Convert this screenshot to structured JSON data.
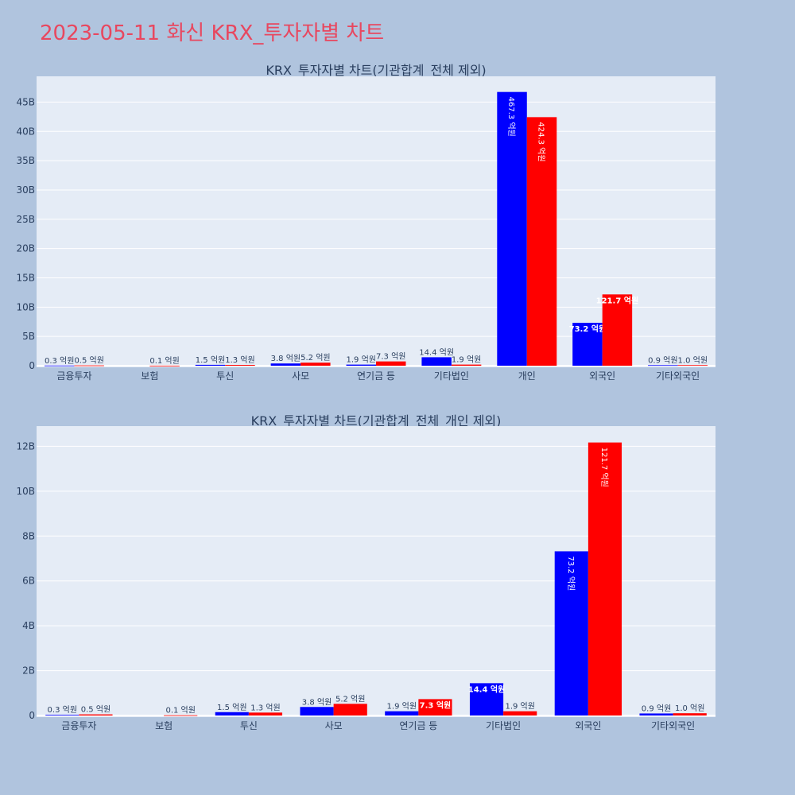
{
  "page": {
    "title": "2023-05-11 화신 KRX_투자자별 차트",
    "title_color": "#e8475f",
    "background": "#b0c4de",
    "plot_background": "#e5ecf6"
  },
  "chart_data": [
    {
      "type": "bar",
      "title": "KRX_투자자별 차트(기관합계_전체 제외)",
      "categories": [
        "금융투자",
        "보험",
        "투신",
        "사모",
        "연기금 등",
        "기타법인",
        "개인",
        "외국인",
        "기타외국인"
      ],
      "series": [
        {
          "color": "#0000ff",
          "values": [
            30000000,
            0,
            150000000,
            380000000,
            190000000,
            1440000000,
            46730000000,
            7320000000,
            90000000
          ],
          "labels": [
            "0.3 억원",
            "",
            "1.5 억원",
            "3.8 억원",
            "1.9 억원",
            "14.4 억원",
            "467.3 억원",
            "73.2 억원",
            "0.9 억원"
          ]
        },
        {
          "color": "#ff0000",
          "values": [
            50000000,
            10000000,
            130000000,
            520000000,
            730000000,
            190000000,
            42430000000,
            12170000000,
            100000000
          ],
          "labels": [
            "0.5 억원",
            "0.1 억원",
            "1.3 억원",
            "5.2 억원",
            "7.3 억원",
            "1.9 억원",
            "424.3 억원",
            "121.7 억원",
            "1.0 억원"
          ]
        }
      ],
      "yticks": [
        0,
        5000000000,
        10000000000,
        15000000000,
        20000000000,
        25000000000,
        30000000000,
        35000000000,
        40000000000,
        45000000000
      ],
      "ytick_labels": [
        "0",
        "5B",
        "10B",
        "15B",
        "20B",
        "25B",
        "30B",
        "35B",
        "40B",
        "45B"
      ],
      "ylim": [
        0,
        49400000000
      ],
      "grid": true
    },
    {
      "type": "bar",
      "title": "KRX_투자자별 차트(기관합계_전체_개인 제외)",
      "categories": [
        "금융투자",
        "보험",
        "투신",
        "사모",
        "연기금 등",
        "기타법인",
        "외국인",
        "기타외국인"
      ],
      "series": [
        {
          "color": "#0000ff",
          "values": [
            30000000,
            0,
            150000000,
            380000000,
            190000000,
            1440000000,
            7320000000,
            90000000
          ],
          "labels": [
            "0.3 억원",
            "",
            "1.5 억원",
            "3.8 억원",
            "1.9 억원",
            "14.4 억원",
            "73.2 억원",
            "0.9 억원"
          ]
        },
        {
          "color": "#ff0000",
          "values": [
            50000000,
            10000000,
            130000000,
            520000000,
            730000000,
            190000000,
            12170000000,
            100000000
          ],
          "labels": [
            "0.5 억원",
            "0.1 억원",
            "1.3 억원",
            "5.2 억원",
            "7.3 억원",
            "1.9 억원",
            "121.7 억원",
            "1.0 억원"
          ]
        }
      ],
      "yticks": [
        0,
        2000000000,
        4000000000,
        6000000000,
        8000000000,
        10000000000,
        12000000000
      ],
      "ytick_labels": [
        "0",
        "2B",
        "4B",
        "6B",
        "8B",
        "10B",
        "12B"
      ],
      "ylim": [
        0,
        12900000000
      ],
      "grid": true
    }
  ]
}
